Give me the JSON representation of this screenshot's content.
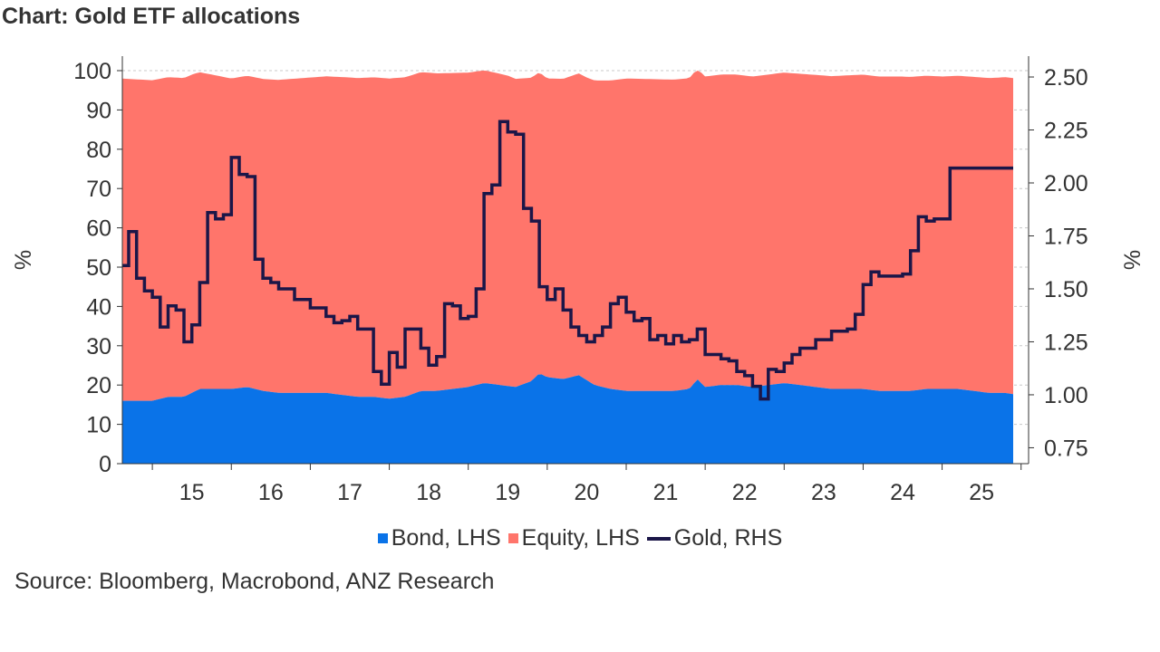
{
  "title": "Chart: Gold ETF allocations",
  "source": "Source: Bloomberg, Macrobond, ANZ Research",
  "colors": {
    "bond": "#0A73E8",
    "equity": "#FF756B",
    "gold": "#1B1648",
    "grid": "#c8c8c8",
    "axis": "#333333"
  },
  "chart_data": {
    "type": "area",
    "x_ticks": [
      "15",
      "16",
      "17",
      "18",
      "19",
      "20",
      "21",
      "22",
      "23",
      "24",
      "25"
    ],
    "x_range": [
      2014.6,
      2025.95
    ],
    "left_axis": {
      "label": "%",
      "ticks": [
        "0",
        "10",
        "20",
        "30",
        "40",
        "50",
        "60",
        "70",
        "80",
        "90",
        "100"
      ],
      "range": [
        0,
        100
      ]
    },
    "right_axis": {
      "label": "%",
      "ticks": [
        "0.75",
        "1.00",
        "1.25",
        "1.50",
        "1.75",
        "2.00",
        "2.25",
        "2.50"
      ],
      "range": [
        0.675,
        2.53
      ]
    },
    "grid": "horizontal dashed",
    "legend_position": "bottom",
    "legend": [
      "Bond, LHS",
      "Equity, LHS",
      "Gold, RHS"
    ],
    "series": [
      {
        "name": "Bond, LHS",
        "axis": "left",
        "kind": "stacked-area",
        "x": [
          2014.6,
          2015.0,
          2015.2,
          2015.4,
          2015.6,
          2015.8,
          2016.0,
          2016.2,
          2016.4,
          2016.6,
          2016.8,
          2017.0,
          2017.2,
          2017.4,
          2017.6,
          2017.8,
          2018.0,
          2018.2,
          2018.4,
          2018.6,
          2018.8,
          2019.0,
          2019.2,
          2019.4,
          2019.6,
          2019.8,
          2019.9,
          2020.0,
          2020.2,
          2020.4,
          2020.6,
          2020.8,
          2021.0,
          2021.2,
          2021.4,
          2021.6,
          2021.8,
          2021.9,
          2022.0,
          2022.2,
          2022.4,
          2022.6,
          2022.8,
          2023.0,
          2023.2,
          2023.4,
          2023.6,
          2023.8,
          2024.0,
          2024.2,
          2024.4,
          2024.6,
          2024.8,
          2025.0,
          2025.2,
          2025.4,
          2025.6,
          2025.8,
          2025.95
        ],
        "values": [
          16.0,
          16.0,
          17.0,
          17.0,
          19.0,
          19.0,
          19.0,
          19.5,
          18.5,
          18.0,
          18.0,
          18.0,
          18.0,
          17.5,
          17.0,
          17.0,
          16.5,
          17.0,
          18.5,
          18.5,
          19.0,
          19.5,
          20.5,
          20.0,
          19.5,
          21.0,
          23.0,
          22.0,
          21.5,
          22.5,
          20.0,
          19.0,
          18.5,
          18.5,
          18.5,
          18.5,
          19.0,
          21.5,
          19.5,
          20.0,
          20.0,
          19.5,
          20.0,
          20.5,
          20.0,
          19.5,
          19.0,
          19.0,
          19.0,
          18.5,
          18.5,
          18.5,
          19.0,
          19.0,
          19.0,
          18.5,
          18.0,
          18.0,
          17.5
        ]
      },
      {
        "name": "Equity, LHS",
        "axis": "left",
        "kind": "stacked-area",
        "x": [
          2014.6,
          2015.5,
          2016.0,
          2016.5,
          2017.5,
          2018.0,
          2018.5,
          2019.0,
          2019.5,
          2020.0,
          2020.5,
          2021.0,
          2022.0,
          2023.0,
          2024.0,
          2024.5,
          2025.0,
          2025.5,
          2025.95
        ],
        "values": [
          82.0,
          81.0,
          79.0,
          79.5,
          81.0,
          81.5,
          81.0,
          80.0,
          79.0,
          76.0,
          77.0,
          79.5,
          79.0,
          79.0,
          80.0,
          80.0,
          79.5,
          80.0,
          80.5
        ]
      },
      {
        "name": "Gold, RHS",
        "axis": "right",
        "kind": "step-line",
        "x": [
          2014.6,
          2014.7,
          2014.8,
          2014.9,
          2015.0,
          2015.1,
          2015.2,
          2015.3,
          2015.4,
          2015.5,
          2015.6,
          2015.7,
          2015.8,
          2015.9,
          2016.0,
          2016.1,
          2016.2,
          2016.3,
          2016.4,
          2016.5,
          2016.6,
          2016.8,
          2017.0,
          2017.2,
          2017.3,
          2017.4,
          2017.5,
          2017.6,
          2017.8,
          2017.9,
          2018.0,
          2018.1,
          2018.2,
          2018.3,
          2018.4,
          2018.5,
          2018.6,
          2018.7,
          2018.8,
          2018.9,
          2019.0,
          2019.1,
          2019.2,
          2019.3,
          2019.4,
          2019.5,
          2019.6,
          2019.7,
          2019.8,
          2019.9,
          2020.0,
          2020.1,
          2020.2,
          2020.3,
          2020.4,
          2020.5,
          2020.6,
          2020.7,
          2020.8,
          2020.9,
          2021.0,
          2021.1,
          2021.2,
          2021.3,
          2021.4,
          2021.5,
          2021.6,
          2021.7,
          2021.8,
          2021.9,
          2022.0,
          2022.1,
          2022.2,
          2022.3,
          2022.4,
          2022.5,
          2022.6,
          2022.7,
          2022.8,
          2022.9,
          2023.0,
          2023.1,
          2023.2,
          2023.3,
          2023.4,
          2023.5,
          2023.6,
          2023.7,
          2023.8,
          2023.9,
          2024.0,
          2024.1,
          2024.2,
          2024.3,
          2024.4,
          2024.5,
          2024.6,
          2024.7,
          2024.8,
          2024.9,
          2025.0,
          2025.1,
          2025.2,
          2025.3,
          2025.4,
          2025.5,
          2025.6,
          2025.7,
          2025.8,
          2025.95
        ],
        "values": [
          1.61,
          1.77,
          1.55,
          1.49,
          1.46,
          1.32,
          1.42,
          1.4,
          1.25,
          1.33,
          1.53,
          1.86,
          1.83,
          1.85,
          2.12,
          2.04,
          2.03,
          1.64,
          1.55,
          1.53,
          1.5,
          1.45,
          1.41,
          1.37,
          1.34,
          1.35,
          1.37,
          1.31,
          1.11,
          1.05,
          1.2,
          1.13,
          1.31,
          1.31,
          1.22,
          1.14,
          1.18,
          1.43,
          1.42,
          1.36,
          1.37,
          1.5,
          1.95,
          1.99,
          2.29,
          2.24,
          2.23,
          1.88,
          1.82,
          1.51,
          1.45,
          1.5,
          1.4,
          1.32,
          1.28,
          1.25,
          1.28,
          1.32,
          1.43,
          1.46,
          1.39,
          1.35,
          1.36,
          1.26,
          1.28,
          1.24,
          1.28,
          1.25,
          1.26,
          1.31,
          1.19,
          1.19,
          1.17,
          1.16,
          1.11,
          1.09,
          1.04,
          0.98,
          1.12,
          1.11,
          1.15,
          1.19,
          1.22,
          1.22,
          1.26,
          1.26,
          1.3,
          1.3,
          1.31,
          1.38,
          1.52,
          1.58,
          1.56,
          1.56,
          1.56,
          1.57,
          1.68,
          1.84,
          1.82,
          1.83,
          1.83,
          2.07,
          2.07,
          2.07,
          2.07,
          2.07,
          2.07,
          2.07,
          2.07,
          2.07
        ]
      }
    ]
  }
}
